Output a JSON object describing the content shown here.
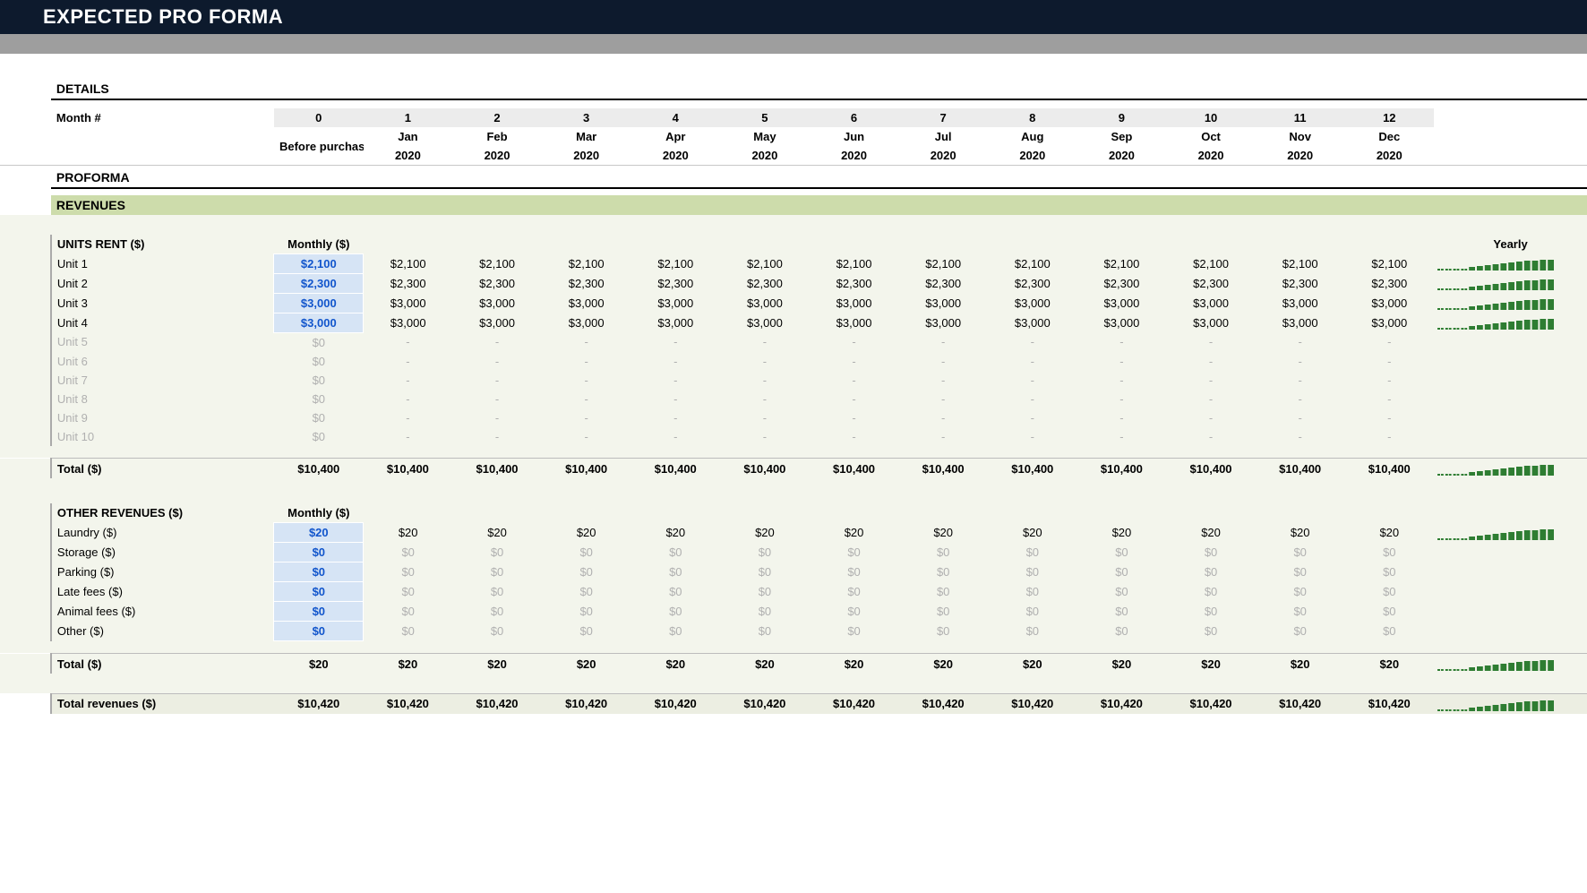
{
  "title": "EXPECTED PRO FORMA",
  "details": {
    "heading": "DETAILS",
    "month_label": "Month #",
    "before_label": "Before purchase"
  },
  "months": {
    "nums": [
      "0",
      "1",
      "2",
      "3",
      "4",
      "5",
      "6",
      "7",
      "8",
      "9",
      "10",
      "11",
      "12"
    ],
    "top": [
      "",
      "Jan",
      "Feb",
      "Mar",
      "Apr",
      "May",
      "Jun",
      "Jul",
      "Aug",
      "Sep",
      "Oct",
      "Nov",
      "Dec"
    ],
    "bot": [
      "",
      "2020",
      "2020",
      "2020",
      "2020",
      "2020",
      "2020",
      "2020",
      "2020",
      "2020",
      "2020",
      "2020",
      "2020"
    ]
  },
  "proforma_heading": "PROFORMA",
  "revenues": {
    "band": "REVENUES",
    "units_heading": "UNITS RENT ($)",
    "monthly_heading": "Monthly ($)",
    "yearly_heading": "Yearly",
    "units": [
      {
        "name": "Unit 1",
        "monthly": "$2,100",
        "cells": [
          "$2,100",
          "$2,100",
          "$2,100",
          "$2,100",
          "$2,100",
          "$2,100",
          "$2,100",
          "$2,100",
          "$2,100",
          "$2,100",
          "$2,100",
          "$2,100"
        ],
        "spark": true
      },
      {
        "name": "Unit 2",
        "monthly": "$2,300",
        "cells": [
          "$2,300",
          "$2,300",
          "$2,300",
          "$2,300",
          "$2,300",
          "$2,300",
          "$2,300",
          "$2,300",
          "$2,300",
          "$2,300",
          "$2,300",
          "$2,300"
        ],
        "spark": true
      },
      {
        "name": "Unit 3",
        "monthly": "$3,000",
        "cells": [
          "$3,000",
          "$3,000",
          "$3,000",
          "$3,000",
          "$3,000",
          "$3,000",
          "$3,000",
          "$3,000",
          "$3,000",
          "$3,000",
          "$3,000",
          "$3,000"
        ],
        "spark": true
      },
      {
        "name": "Unit 4",
        "monthly": "$3,000",
        "cells": [
          "$3,000",
          "$3,000",
          "$3,000",
          "$3,000",
          "$3,000",
          "$3,000",
          "$3,000",
          "$3,000",
          "$3,000",
          "$3,000",
          "$3,000",
          "$3,000"
        ],
        "spark": true
      },
      {
        "name": "Unit 5",
        "monthly": "$0",
        "cells": [
          "-",
          "-",
          "-",
          "-",
          "-",
          "-",
          "-",
          "-",
          "-",
          "-",
          "-",
          "-"
        ],
        "muted": true
      },
      {
        "name": "Unit 6",
        "monthly": "$0",
        "cells": [
          "-",
          "-",
          "-",
          "-",
          "-",
          "-",
          "-",
          "-",
          "-",
          "-",
          "-",
          "-"
        ],
        "muted": true
      },
      {
        "name": "Unit 7",
        "monthly": "$0",
        "cells": [
          "-",
          "-",
          "-",
          "-",
          "-",
          "-",
          "-",
          "-",
          "-",
          "-",
          "-",
          "-"
        ],
        "muted": true
      },
      {
        "name": "Unit 8",
        "monthly": "$0",
        "cells": [
          "-",
          "-",
          "-",
          "-",
          "-",
          "-",
          "-",
          "-",
          "-",
          "-",
          "-",
          "-"
        ],
        "muted": true
      },
      {
        "name": "Unit 9",
        "monthly": "$0",
        "cells": [
          "-",
          "-",
          "-",
          "-",
          "-",
          "-",
          "-",
          "-",
          "-",
          "-",
          "-",
          "-"
        ],
        "muted": true
      },
      {
        "name": "Unit 10",
        "monthly": "$0",
        "cells": [
          "-",
          "-",
          "-",
          "-",
          "-",
          "-",
          "-",
          "-",
          "-",
          "-",
          "-",
          "-"
        ],
        "muted": true
      }
    ],
    "units_total": {
      "label": "Total ($)",
      "monthly": "$10,400",
      "cells": [
        "$10,400",
        "$10,400",
        "$10,400",
        "$10,400",
        "$10,400",
        "$10,400",
        "$10,400",
        "$10,400",
        "$10,400",
        "$10,400",
        "$10,400",
        "$10,400"
      ],
      "spark": true
    },
    "other_heading": "OTHER REVENUES ($)",
    "other": [
      {
        "name": "Laundry ($)",
        "monthly": "$20",
        "cells": [
          "$20",
          "$20",
          "$20",
          "$20",
          "$20",
          "$20",
          "$20",
          "$20",
          "$20",
          "$20",
          "$20",
          "$20"
        ],
        "spark": true
      },
      {
        "name": "Storage ($)",
        "monthly": "$0",
        "cells": [
          "$0",
          "$0",
          "$0",
          "$0",
          "$0",
          "$0",
          "$0",
          "$0",
          "$0",
          "$0",
          "$0",
          "$0"
        ],
        "zero": true
      },
      {
        "name": "Parking ($)",
        "monthly": "$0",
        "cells": [
          "$0",
          "$0",
          "$0",
          "$0",
          "$0",
          "$0",
          "$0",
          "$0",
          "$0",
          "$0",
          "$0",
          "$0"
        ],
        "zero": true
      },
      {
        "name": "Late fees ($)",
        "monthly": "$0",
        "cells": [
          "$0",
          "$0",
          "$0",
          "$0",
          "$0",
          "$0",
          "$0",
          "$0",
          "$0",
          "$0",
          "$0",
          "$0"
        ],
        "zero": true
      },
      {
        "name": "Animal fees ($)",
        "monthly": "$0",
        "cells": [
          "$0",
          "$0",
          "$0",
          "$0",
          "$0",
          "$0",
          "$0",
          "$0",
          "$0",
          "$0",
          "$0",
          "$0"
        ],
        "zero": true
      },
      {
        "name": "Other ($)",
        "monthly": "$0",
        "cells": [
          "$0",
          "$0",
          "$0",
          "$0",
          "$0",
          "$0",
          "$0",
          "$0",
          "$0",
          "$0",
          "$0",
          "$0"
        ],
        "zero": true
      }
    ],
    "other_total": {
      "label": "Total ($)",
      "monthly": "$20",
      "cells": [
        "$20",
        "$20",
        "$20",
        "$20",
        "$20",
        "$20",
        "$20",
        "$20",
        "$20",
        "$20",
        "$20",
        "$20"
      ],
      "spark": true
    },
    "grand_total": {
      "label": "Total revenues ($)",
      "monthly": "$10,420",
      "cells": [
        "$10,420",
        "$10,420",
        "$10,420",
        "$10,420",
        "$10,420",
        "$10,420",
        "$10,420",
        "$10,420",
        "$10,420",
        "$10,420",
        "$10,420",
        "$10,420"
      ],
      "spark": true
    }
  },
  "style": {
    "spark_color": "#2e7d32",
    "spark_heights": [
      2,
      2,
      2,
      3,
      4,
      5,
      6,
      7,
      8,
      9,
      10,
      11,
      11,
      12,
      12
    ],
    "spark_bars": 15,
    "spark_w": 130,
    "spark_h": 16,
    "header_bg": "#0d1a2d",
    "rev_band_bg": "#cddcab",
    "rev_body_bg": "#f3f5ec",
    "editable_bg": "#d6e4f5",
    "editable_fg": "#1155cc"
  }
}
